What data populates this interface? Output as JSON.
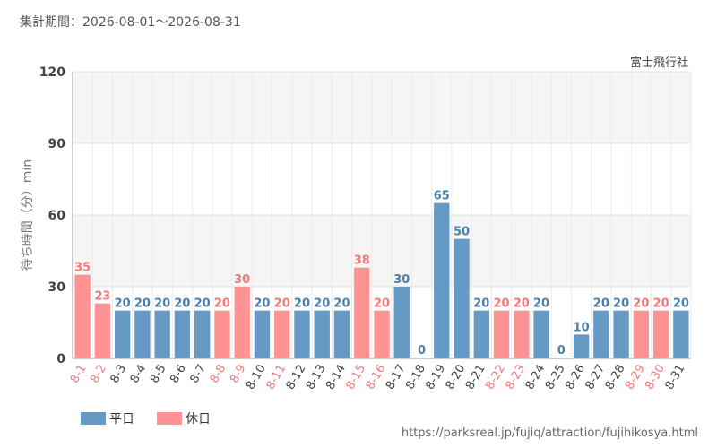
{
  "header": {
    "period": "集計期間：2026-08-01～2026-08-31"
  },
  "attraction": "富士飛行社",
  "source_url": "https://parksreal.jp/fujiq/attraction/fujihikosya.html",
  "legend": {
    "weekday_label": "平日",
    "holiday_label": "休日"
  },
  "colors": {
    "weekday": "#6699c4",
    "holiday": "#ff9393",
    "weekday_text": "#4d7fa8",
    "holiday_text": "#f07a7a",
    "grid": "#e0e0e0",
    "band": "#f5f5f5"
  },
  "chart_data": {
    "type": "bar",
    "ylabel": "待ち時間（分）min",
    "ylim": [
      0,
      120
    ],
    "yticks": [
      0,
      30,
      60,
      90,
      120
    ],
    "categories": [
      "8-1",
      "8-2",
      "8-3",
      "8-4",
      "8-5",
      "8-6",
      "8-7",
      "8-8",
      "8-9",
      "8-10",
      "8-11",
      "8-12",
      "8-13",
      "8-14",
      "8-15",
      "8-16",
      "8-17",
      "8-18",
      "8-19",
      "8-20",
      "8-21",
      "8-22",
      "8-23",
      "8-24",
      "8-25",
      "8-26",
      "8-27",
      "8-28",
      "8-29",
      "8-30",
      "8-31"
    ],
    "values": [
      35,
      23,
      20,
      20,
      20,
      20,
      20,
      20,
      30,
      20,
      20,
      20,
      20,
      20,
      38,
      20,
      30,
      0,
      65,
      50,
      20,
      20,
      20,
      20,
      0,
      10,
      20,
      20,
      20,
      20,
      20
    ],
    "day_types": [
      "holiday",
      "holiday",
      "weekday",
      "weekday",
      "weekday",
      "weekday",
      "weekday",
      "holiday",
      "holiday",
      "weekday",
      "holiday",
      "weekday",
      "weekday",
      "weekday",
      "holiday",
      "holiday",
      "weekday",
      "weekday",
      "weekday",
      "weekday",
      "weekday",
      "holiday",
      "holiday",
      "weekday",
      "weekday",
      "weekday",
      "weekday",
      "weekday",
      "holiday",
      "holiday",
      "weekday"
    ]
  }
}
